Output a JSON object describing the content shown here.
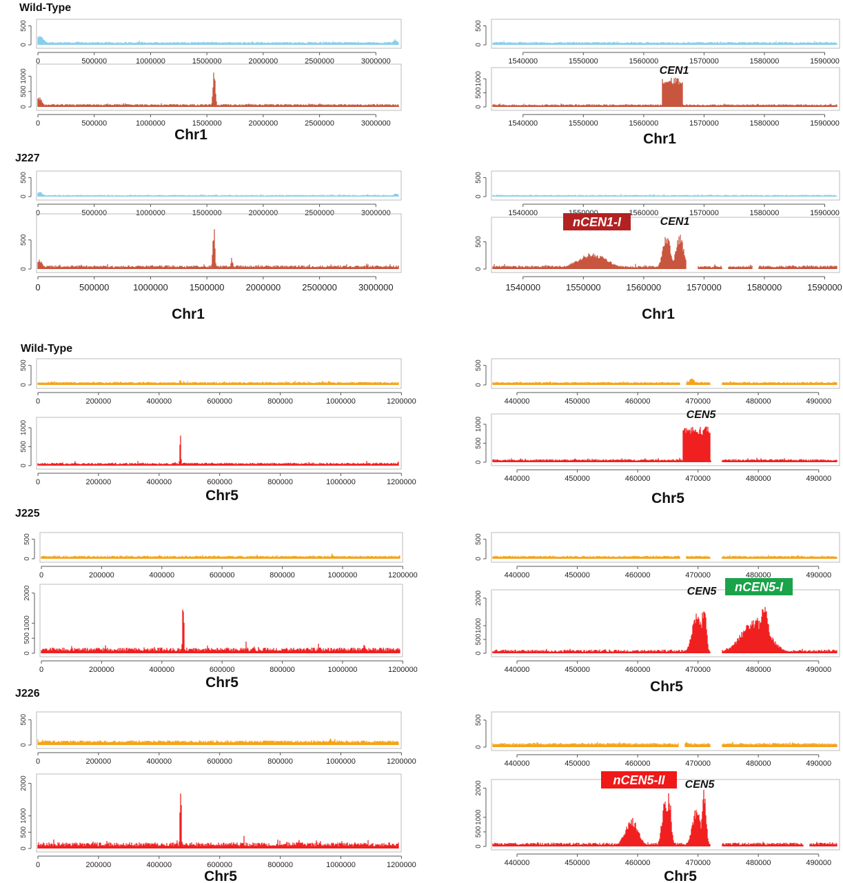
{
  "group_labels": [
    {
      "id": "g-wt-1",
      "text": "Wild-Type"
    },
    {
      "id": "g-j227",
      "text": "J227"
    },
    {
      "id": "g-wt-5",
      "text": "Wild-Type"
    },
    {
      "id": "g-j225",
      "text": "J225"
    },
    {
      "id": "g-j226",
      "text": "J226"
    }
  ],
  "chr_labels": [
    {
      "id": "c1",
      "text": "Chr1"
    },
    {
      "id": "c2",
      "text": "Chr1"
    },
    {
      "id": "c3",
      "text": "Chr1"
    },
    {
      "id": "c4",
      "text": "Chr1"
    },
    {
      "id": "c5",
      "text": "Chr5"
    },
    {
      "id": "c6",
      "text": "Chr5"
    },
    {
      "id": "c7",
      "text": "Chr5"
    },
    {
      "id": "c8",
      "text": "Chr5"
    },
    {
      "id": "c9",
      "text": "Chr5"
    },
    {
      "id": "c10",
      "text": "Chr5"
    }
  ],
  "colors": {
    "blue": "#87ceeb",
    "brick": "#c8553d",
    "orange": "#f5a31a",
    "red": "#f02020",
    "axis": "#555555",
    "box": "#bbbbbb",
    "label_dark_red": "#b22222",
    "label_green": "#1aa34a",
    "label_red": "#f01818"
  },
  "chart_data": [
    {
      "id": "p1",
      "type": "area",
      "color": "blue",
      "xlim": [
        0,
        3200000
      ],
      "ylim": [
        0,
        600
      ],
      "xticks": [
        0,
        500000,
        1000000,
        1500000,
        2000000,
        2500000,
        3000000
      ],
      "yticks": [
        0,
        500
      ],
      "baseline": 60,
      "noise": 18,
      "peaks": [
        [
          10000,
          60000,
          250
        ],
        [
          3170000,
          30000,
          160
        ]
      ]
    },
    {
      "id": "p2",
      "type": "area",
      "color": "brick",
      "xlim": [
        0,
        3200000
      ],
      "ylim": [
        0,
        1300
      ],
      "xticks": [
        0,
        500000,
        1000000,
        1500000,
        2000000,
        2500000,
        3000000
      ],
      "yticks": [
        0,
        500,
        1000
      ],
      "baseline": 70,
      "noise": 22,
      "peaks": [
        [
          10000,
          40000,
          320
        ],
        [
          1565000,
          15000,
          1250
        ]
      ]
    },
    {
      "id": "p3",
      "type": "area",
      "color": "blue",
      "xlim": [
        0,
        3200000
      ],
      "ylim": [
        0,
        600
      ],
      "xticks": [
        0,
        500000,
        1000000,
        1500000,
        2000000,
        2500000,
        3000000
      ],
      "yticks": [
        0,
        500
      ],
      "baseline": 35,
      "noise": 12,
      "peaks": [
        [
          15000,
          40000,
          130
        ],
        [
          3180000,
          30000,
          90
        ]
      ]
    },
    {
      "id": "p4",
      "type": "area",
      "color": "brick",
      "xlim": [
        0,
        3200000
      ],
      "ylim": [
        0,
        900
      ],
      "xticks": [
        0,
        500000,
        1000000,
        1500000,
        2000000,
        2500000,
        3000000
      ],
      "yticks": [
        0,
        500
      ],
      "baseline": 45,
      "noise": 18,
      "peaks": [
        [
          10000,
          40000,
          170
        ],
        [
          1555000,
          10000,
          520
        ],
        [
          1565000,
          10000,
          720
        ],
        [
          1720000,
          8000,
          240
        ]
      ]
    },
    {
      "id": "p5",
      "type": "area",
      "color": "blue",
      "xlim": [
        1535000,
        1592000
      ],
      "ylim": [
        0,
        600
      ],
      "xticks": [
        1540000,
        1550000,
        1560000,
        1570000,
        1580000,
        1590000
      ],
      "yticks": [
        0,
        500
      ],
      "baseline": 60,
      "noise": 18,
      "peaks": []
    },
    {
      "id": "p6",
      "type": "area",
      "color": "brick",
      "xlim": [
        1535000,
        1592000
      ],
      "ylim": [
        0,
        1300
      ],
      "xticks": [
        1540000,
        1550000,
        1560000,
        1570000,
        1580000,
        1590000
      ],
      "yticks": [
        0,
        500,
        1000
      ],
      "baseline": 70,
      "noise": 22,
      "blocks": [
        [
          1563000,
          1566500,
          1050
        ]
      ],
      "peaks": []
    },
    {
      "id": "p7",
      "type": "area",
      "color": "blue",
      "xlim": [
        1535000,
        1592000
      ],
      "ylim": [
        0,
        600
      ],
      "xticks": [
        1540000,
        1550000,
        1560000,
        1570000,
        1580000,
        1590000
      ],
      "yticks": [
        0,
        500
      ],
      "baseline": 35,
      "noise": 12,
      "peaks": []
    },
    {
      "id": "p8",
      "type": "area",
      "color": "brick",
      "xlim": [
        1535000,
        1592000
      ],
      "ylim": [
        0,
        900
      ],
      "xticks": [
        1540000,
        1550000,
        1560000,
        1570000,
        1580000,
        1590000
      ],
      "yticks": [
        0,
        500
      ],
      "baseline": 45,
      "noise": 18,
      "gaps": [
        [
          1567000,
          1569000
        ],
        [
          1573000,
          1574000
        ],
        [
          1578000,
          1579000
        ]
      ],
      "peaks": [
        [
          1551500,
          3500,
          300
        ],
        [
          1563800,
          900,
          650
        ],
        [
          1566000,
          900,
          650
        ]
      ]
    },
    {
      "id": "p9",
      "type": "area",
      "color": "orange",
      "xlim": [
        0,
        1190000
      ],
      "ylim": [
        0,
        600
      ],
      "xticks": [
        0,
        200000,
        400000,
        600000,
        800000,
        1000000,
        1200000
      ],
      "yticks": [
        0,
        500
      ],
      "baseline": 60,
      "noise": 18,
      "peaks": [
        [
          470000,
          4000,
          160
        ],
        [
          960000,
          5000,
          130
        ]
      ]
    },
    {
      "id": "p10",
      "type": "area",
      "color": "red",
      "xlim": [
        0,
        1190000
      ],
      "ylim": [
        0,
        1200
      ],
      "xticks": [
        0,
        200000,
        400000,
        600000,
        800000,
        1000000,
        1200000
      ],
      "yticks": [
        0,
        500,
        1000
      ],
      "baseline": 55,
      "noise": 22,
      "peaks": [
        [
          470000,
          2500,
          1000
        ]
      ]
    },
    {
      "id": "p11",
      "type": "area",
      "color": "orange",
      "xlim": [
        0,
        1190000
      ],
      "ylim": [
        0,
        600
      ],
      "xticks": [
        0,
        200000,
        400000,
        600000,
        800000,
        1000000,
        1200000
      ],
      "yticks": [
        0,
        500
      ],
      "baseline": 60,
      "noise": 18,
      "peaks": [
        [
          965000,
          4000,
          150
        ]
      ]
    },
    {
      "id": "p12",
      "type": "area",
      "color": "red",
      "xlim": [
        0,
        1190000
      ],
      "ylim": [
        0,
        2200
      ],
      "xticks": [
        0,
        200000,
        400000,
        600000,
        800000,
        1000000,
        1200000
      ],
      "yticks": [
        0,
        500,
        1000,
        2000
      ],
      "baseline": 130,
      "noise": 60,
      "peaks": [
        [
          470000,
          2500,
          2050
        ],
        [
          473000,
          2000,
          1300
        ],
        [
          680000,
          2000,
          400
        ],
        [
          920000,
          2000,
          350
        ]
      ]
    },
    {
      "id": "p13",
      "type": "area",
      "color": "orange",
      "xlim": [
        0,
        1190000
      ],
      "ylim": [
        0,
        600
      ],
      "xticks": [
        0,
        200000,
        400000,
        600000,
        800000,
        1000000,
        1200000
      ],
      "yticks": [
        0,
        500
      ],
      "baseline": 70,
      "noise": 20,
      "peaks": [
        [
          965000,
          4000,
          170
        ]
      ]
    },
    {
      "id": "p14",
      "type": "area",
      "color": "red",
      "xlim": [
        0,
        1190000
      ],
      "ylim": [
        0,
        2200
      ],
      "xticks": [
        0,
        200000,
        400000,
        600000,
        800000,
        1000000,
        1200000
      ],
      "yticks": [
        0,
        500,
        1000,
        2000
      ],
      "baseline": 130,
      "noise": 60,
      "peaks": [
        [
          470000,
          2500,
          2000
        ],
        [
          473000,
          2000,
          1400
        ],
        [
          680000,
          2000,
          450
        ],
        [
          920000,
          2000,
          400
        ]
      ]
    },
    {
      "id": "p15",
      "type": "area",
      "color": "orange",
      "xlim": [
        436000,
        493000
      ],
      "ylim": [
        0,
        600
      ],
      "xticks": [
        440000,
        450000,
        460000,
        470000,
        480000,
        490000
      ],
      "yticks": [
        0,
        500
      ],
      "baseline": 60,
      "noise": 16,
      "gaps": [
        [
          467000,
          468000
        ],
        [
          472000,
          474000
        ]
      ],
      "peaks": [
        [
          469000,
          700,
          180
        ]
      ]
    },
    {
      "id": "p16",
      "type": "area",
      "color": "red",
      "xlim": [
        436000,
        493000
      ],
      "ylim": [
        0,
        1200
      ],
      "xticks": [
        440000,
        450000,
        460000,
        470000,
        480000,
        490000
      ],
      "yticks": [
        0,
        500,
        1000
      ],
      "baseline": 60,
      "noise": 20,
      "gaps": [
        [
          472200,
          474000
        ]
      ],
      "blocks": [
        [
          467500,
          472000,
          950
        ]
      ],
      "peaks": []
    },
    {
      "id": "p17",
      "type": "area",
      "color": "orange",
      "xlim": [
        436000,
        493000
      ],
      "ylim": [
        0,
        600
      ],
      "xticks": [
        440000,
        450000,
        460000,
        470000,
        480000,
        490000
      ],
      "yticks": [
        0,
        500
      ],
      "baseline": 60,
      "noise": 16,
      "gaps": [
        [
          467000,
          468000
        ],
        [
          472000,
          474000
        ]
      ],
      "peaks": []
    },
    {
      "id": "p18",
      "type": "area",
      "color": "red",
      "xlim": [
        436000,
        493000
      ],
      "ylim": [
        0,
        2200
      ],
      "xticks": [
        440000,
        450000,
        460000,
        470000,
        480000,
        490000
      ],
      "yticks": [
        0,
        500,
        1000,
        2000
      ],
      "baseline": 90,
      "noise": 40,
      "gaps": [
        [
          472000,
          474000
        ]
      ],
      "peaks": [
        [
          469800,
          1100,
          1600
        ],
        [
          471000,
          500,
          2000
        ],
        [
          479500,
          3200,
          1300
        ],
        [
          481000,
          1000,
          1800
        ]
      ]
    },
    {
      "id": "p19",
      "type": "area",
      "color": "orange",
      "xlim": [
        436000,
        493000
      ],
      "ylim": [
        0,
        600
      ],
      "xticks": [
        440000,
        450000,
        460000,
        470000,
        480000,
        490000
      ],
      "yticks": [
        0,
        500
      ],
      "baseline": 60,
      "noise": 16,
      "gaps": [
        [
          466800,
          467800
        ],
        [
          472000,
          474000
        ]
      ],
      "peaks": []
    },
    {
      "id": "p20",
      "type": "area",
      "color": "red",
      "xlim": [
        436000,
        493000
      ],
      "ylim": [
        0,
        2200
      ],
      "xticks": [
        440000,
        450000,
        460000,
        470000,
        480000,
        490000
      ],
      "yticks": [
        0,
        500,
        1000,
        2000
      ],
      "baseline": 90,
      "noise": 40,
      "gaps": [
        [
          472000,
          474000
        ],
        [
          487500,
          488500
        ]
      ],
      "peaks": [
        [
          459000,
          1500,
          1000
        ],
        [
          464500,
          700,
          1600
        ],
        [
          465200,
          500,
          1900
        ],
        [
          469800,
          1000,
          1400
        ],
        [
          471000,
          500,
          2000
        ]
      ]
    }
  ],
  "annotations": [
    {
      "id": "a-cen1-a",
      "text": "CEN1",
      "style": "italic"
    },
    {
      "id": "a-cen1-b",
      "text": "CEN1",
      "style": "italic"
    },
    {
      "id": "a-ncen1",
      "text": "nCEN1-I",
      "style": "boxed",
      "bg": "label_dark_red"
    },
    {
      "id": "a-cen5-a",
      "text": "CEN5",
      "style": "italic"
    },
    {
      "id": "a-cen5-b",
      "text": "CEN5",
      "style": "italic"
    },
    {
      "id": "a-ncen5i",
      "text": "nCEN5-I",
      "style": "boxed",
      "bg": "label_green"
    },
    {
      "id": "a-ncen5ii",
      "text": "nCEN5-II",
      "style": "boxed",
      "bg": "label_red"
    },
    {
      "id": "a-cen5-c",
      "text": "CEN5",
      "style": "italic"
    }
  ]
}
